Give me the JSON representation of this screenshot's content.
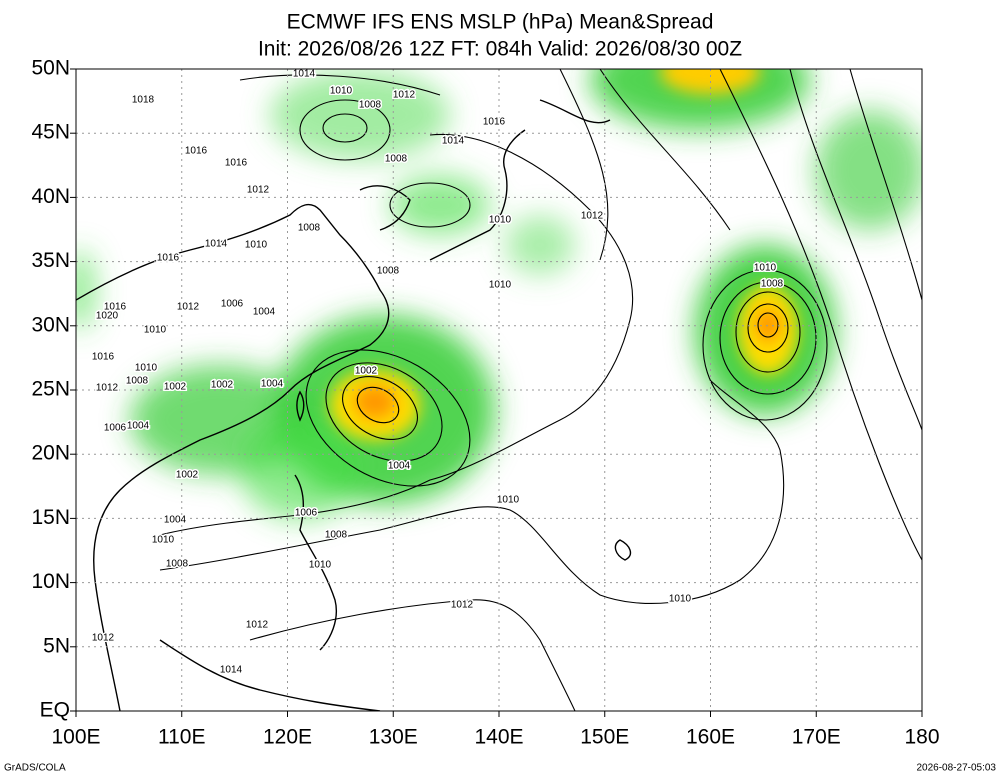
{
  "header": {
    "title": "ECMWF IFS ENS MSLP (hPa) Mean&Spread",
    "subtitle": "Init: 2026/08/26 12Z  FT: 084h  Valid: 2026/08/30 00Z"
  },
  "axes": {
    "x_labels": [
      "100E",
      "110E",
      "120E",
      "130E",
      "140E",
      "150E",
      "160E",
      "170E",
      "180"
    ],
    "y_labels": [
      "50N",
      "45N",
      "40N",
      "35N",
      "30N",
      "25N",
      "20N",
      "15N",
      "10N",
      "5N",
      "EQ"
    ]
  },
  "contour_labels": [
    "1014",
    "1018",
    "1010",
    "1008",
    "1012",
    "1016",
    "1014",
    "1016",
    "1016",
    "1008",
    "1012",
    "1010",
    "1012",
    "1008",
    "1014",
    "1010",
    "1016",
    "1008",
    "1010",
    "1012",
    "1006",
    "1004",
    "1010",
    "1016",
    "1020",
    "1016",
    "1010",
    "1008",
    "1012",
    "1002",
    "1002",
    "1004",
    "1002",
    "1006",
    "1004",
    "1002",
    "1004",
    "1004",
    "1006",
    "1010",
    "1008",
    "1008",
    "1010",
    "1010",
    "1010",
    "1012",
    "1012",
    "1012",
    "1014",
    "1010",
    "1008"
  ],
  "footer": {
    "left": "GrADS/COLA",
    "right": "2026-08-27-05:03"
  }
}
